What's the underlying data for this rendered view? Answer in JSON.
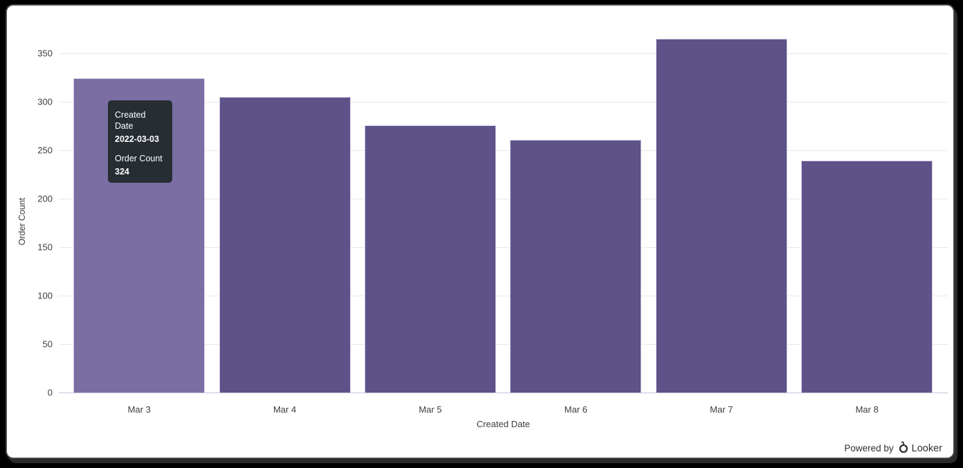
{
  "chart_data": {
    "type": "bar",
    "categories": [
      "Mar 3",
      "Mar 4",
      "Mar 5",
      "Mar 6",
      "Mar 7",
      "Mar 8"
    ],
    "values": [
      324,
      305,
      276,
      261,
      365,
      239
    ],
    "xlabel": "Created Date",
    "ylabel": "Order Count",
    "yticks": [
      0,
      50,
      100,
      150,
      200,
      250,
      300,
      350
    ],
    "ylim": [
      0,
      370
    ],
    "grid": "horizontal-only",
    "legend": "none",
    "colors": {
      "bar": "#5e5288",
      "bar_hover": "#7b6ea3",
      "bar_border": "#d2cce4",
      "gridline": "#e8e8e8",
      "axis_line": "#c9c2de",
      "text": "#3c3c3c"
    },
    "hovered_index": 0
  },
  "tooltip": {
    "bg": "#262d33",
    "dimension_label": "Created Date",
    "dimension_value": "2022-03-03",
    "measure_label": "Order Count",
    "measure_value": "324"
  },
  "footer": {
    "powered_by": "Powered by",
    "brand": "Looker"
  }
}
